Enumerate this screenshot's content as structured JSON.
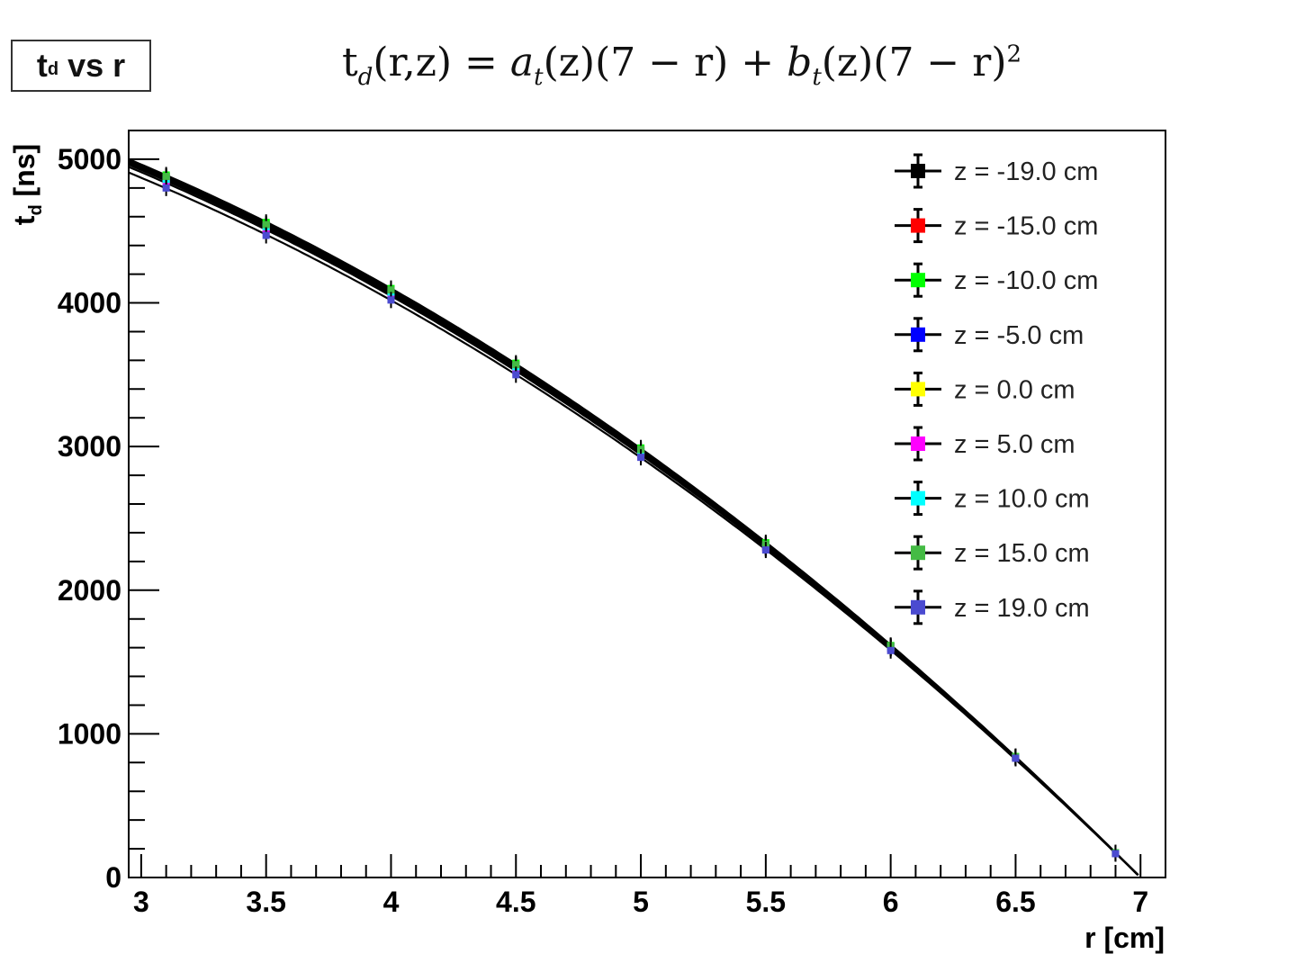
{
  "header": {
    "box_title_main": "t",
    "box_title_sub": "d",
    "box_title_rest": " vs r",
    "formula_parts": {
      "lhs_t": "t",
      "lhs_sub": "d",
      "lhs_args": "(r,z) = ",
      "a": "a",
      "a_sub": "t",
      "a_arg": "(z)(7 − r) + ",
      "b": "b",
      "b_sub": "t",
      "b_arg": "(z)(7 − r)",
      "b_pow": "2"
    }
  },
  "chart_data": {
    "type": "line",
    "xlabel": "r [cm]",
    "ylabel": "t_d [ns]",
    "xlim": [
      2.95,
      7.1
    ],
    "ylim": [
      0,
      5200
    ],
    "xticks": [
      "3",
      "3.5",
      "4",
      "4.5",
      "5",
      "5.5",
      "6",
      "6.5",
      "7"
    ],
    "yticks": [
      "0",
      "1000",
      "2000",
      "3000",
      "4000",
      "5000"
    ],
    "legend_position": "top-right",
    "x": [
      3.1,
      3.5,
      4.0,
      4.5,
      5.0,
      5.5,
      6.0,
      6.5,
      6.9
    ],
    "series": [
      {
        "name": "z = -19.0 cm",
        "color": "#000000",
        "values": [
          4880,
          4550,
          4090,
          3570,
          2980,
          2320,
          1610,
          840,
          170
        ]
      },
      {
        "name": "z = -15.0 cm",
        "color": "#ff0000",
        "values": [
          4870,
          4540,
          4080,
          3560,
          2970,
          2310,
          1605,
          838,
          170
        ]
      },
      {
        "name": "z = -10.0 cm",
        "color": "#00ff00",
        "values": [
          4890,
          4560,
          4100,
          3580,
          2990,
          2330,
          1615,
          842,
          172
        ]
      },
      {
        "name": "z = -5.0 cm",
        "color": "#0000ff",
        "values": [
          4860,
          4530,
          4070,
          3550,
          2960,
          2300,
          1600,
          836,
          168
        ]
      },
      {
        "name": "z = 0.0 cm",
        "color": "#ffff00",
        "values": [
          4850,
          4520,
          4060,
          3540,
          2950,
          2295,
          1598,
          835,
          168
        ]
      },
      {
        "name": "z = 5.0 cm",
        "color": "#ff00ff",
        "values": [
          4840,
          4500,
          4050,
          3530,
          2945,
          2290,
          1595,
          834,
          167
        ]
      },
      {
        "name": "z = 10.0 cm",
        "color": "#00ffff",
        "values": [
          4860,
          4530,
          4075,
          3555,
          2965,
          2305,
          1602,
          837,
          169
        ]
      },
      {
        "name": "z = 15.0 cm",
        "color": "#44bb44",
        "values": [
          4880,
          4545,
          4090,
          3570,
          2980,
          2320,
          1612,
          840,
          170
        ]
      },
      {
        "name": "z = 19.0 cm",
        "color": "#4b4bd0",
        "values": [
          4800,
          4470,
          4020,
          3500,
          2925,
          2280,
          1580,
          830,
          166
        ]
      }
    ]
  }
}
